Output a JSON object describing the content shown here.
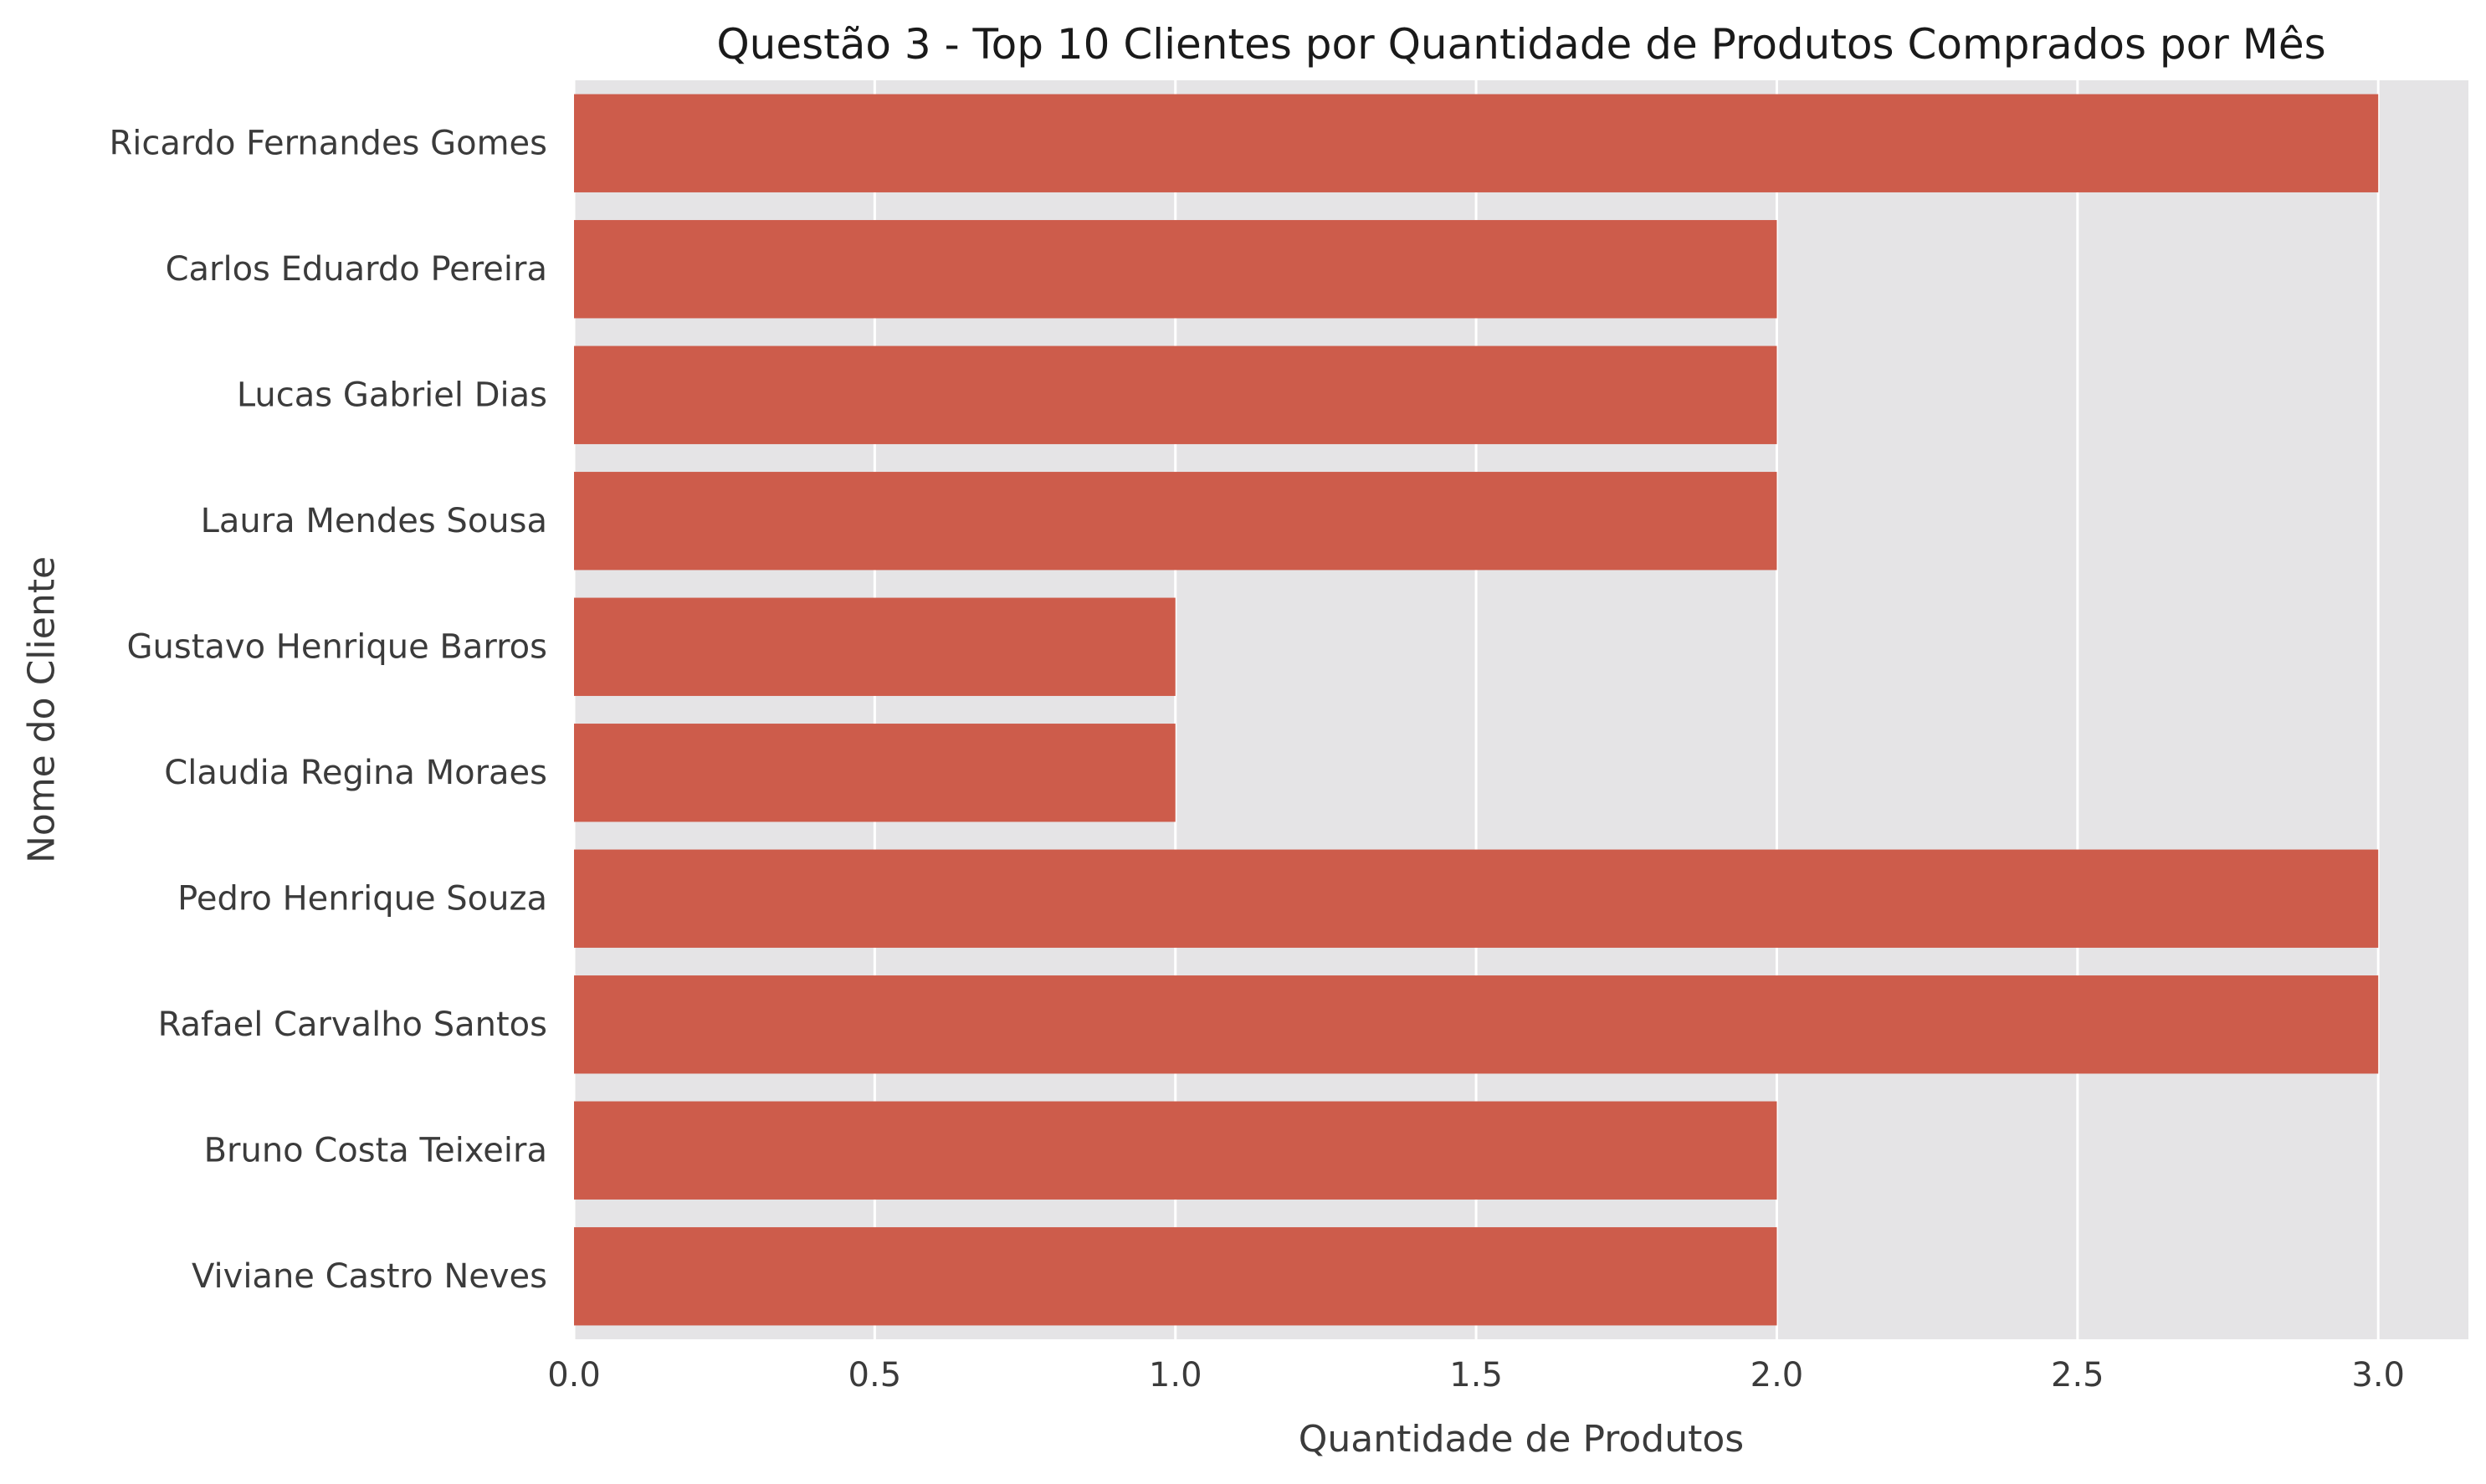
{
  "chart_data": {
    "type": "bar",
    "orientation": "horizontal",
    "title": "Questão 3 - Top 10 Clientes por Quantidade de Produtos Comprados por Mês",
    "xlabel": "Quantidade de Produtos",
    "ylabel": "Nome do Cliente",
    "categories": [
      "Ricardo Fernandes Gomes",
      "Carlos Eduardo Pereira",
      "Lucas Gabriel Dias",
      "Laura Mendes Sousa",
      "Gustavo Henrique Barros",
      "Claudia Regina Moraes",
      "Pedro Henrique Souza",
      "Rafael Carvalho Santos",
      "Bruno Costa Teixeira",
      "Viviane Castro Neves"
    ],
    "values": [
      3,
      2,
      2,
      2,
      1,
      1,
      3,
      3,
      2,
      2
    ],
    "xlim": [
      0,
      3.15
    ],
    "xticks": [
      0.0,
      0.5,
      1.0,
      1.5,
      2.0,
      2.5,
      3.0
    ],
    "xtick_labels": [
      "0.0",
      "0.5",
      "1.0",
      "1.5",
      "2.0",
      "2.5",
      "3.0"
    ],
    "grid": true,
    "colors": {
      "bar": "#cd5c4b",
      "plot_background": "#e5e4e6",
      "grid": "#ffffff",
      "text": "#3b3b3b",
      "title": "#1a1a1a"
    }
  }
}
